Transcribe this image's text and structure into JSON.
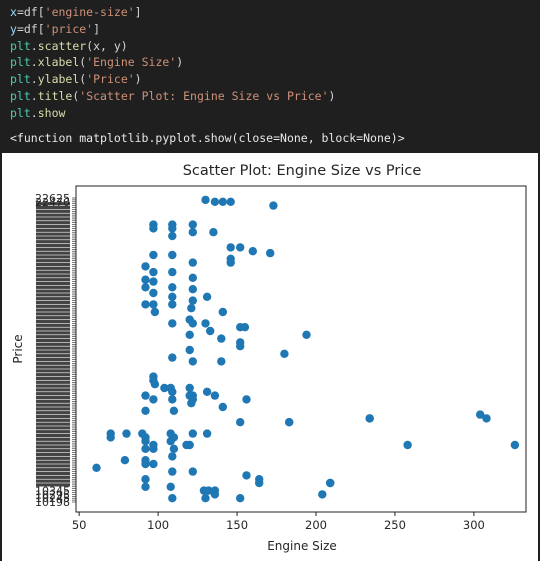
{
  "code_cell": {
    "lines": [
      [
        {
          "t": "x",
          "c": "var"
        },
        {
          "t": "=df[",
          "c": "plain"
        },
        {
          "t": "'engine-size'",
          "c": "str"
        },
        {
          "t": "]",
          "c": "plain"
        }
      ],
      [
        {
          "t": "y",
          "c": "var"
        },
        {
          "t": "=df[",
          "c": "plain"
        },
        {
          "t": "'price'",
          "c": "str"
        },
        {
          "t": "]",
          "c": "plain"
        }
      ],
      [
        {
          "t": "plt",
          "c": "mod"
        },
        {
          "t": ".",
          "c": "plain"
        },
        {
          "t": "scatter",
          "c": "fn"
        },
        {
          "t": "(x, y)",
          "c": "plain"
        }
      ],
      [
        {
          "t": "plt",
          "c": "mod"
        },
        {
          "t": ".",
          "c": "plain"
        },
        {
          "t": "xlabel",
          "c": "fn"
        },
        {
          "t": "(",
          "c": "plain"
        },
        {
          "t": "'Engine Size'",
          "c": "str"
        },
        {
          "t": ")",
          "c": "plain"
        }
      ],
      [
        {
          "t": "plt",
          "c": "mod"
        },
        {
          "t": ".",
          "c": "plain"
        },
        {
          "t": "ylabel",
          "c": "fn"
        },
        {
          "t": "(",
          "c": "plain"
        },
        {
          "t": "'Price'",
          "c": "str"
        },
        {
          "t": ")",
          "c": "plain"
        }
      ],
      [
        {
          "t": "plt",
          "c": "mod"
        },
        {
          "t": ".",
          "c": "plain"
        },
        {
          "t": "title",
          "c": "fn"
        },
        {
          "t": "(",
          "c": "plain"
        },
        {
          "t": "'Scatter Plot: Engine Size vs Price'",
          "c": "str"
        },
        {
          "t": ")",
          "c": "plain"
        }
      ],
      [
        {
          "t": "plt",
          "c": "mod"
        },
        {
          "t": ".",
          "c": "plain"
        },
        {
          "t": "show",
          "c": "fn"
        }
      ]
    ]
  },
  "output": {
    "text": "<function matplotlib.pyplot.show(close=None, block=None)>"
  },
  "colors": {
    "marker": "#1f77b4",
    "str": "#ce9178",
    "var": "#9cdcfe",
    "fn": "#dcdcaa",
    "mod": "#4ec9b0",
    "plain": "#d4d4d4"
  },
  "chart_data": {
    "type": "scatter",
    "title": "Scatter Plot: Engine Size vs Price",
    "xlabel": "Engine Size",
    "ylabel": "Price",
    "xlim": [
      48,
      333
    ],
    "x_ticks": [
      50,
      100,
      150,
      200,
      250,
      300
    ],
    "y_axis_note": "categorical price strings; tick labels overlap and are illegible",
    "y_top_visible_labels": [
      "22625",
      "22470"
    ],
    "y_bottom_visible_labels": [
      "10345",
      "10295",
      "10245",
      "10198"
    ],
    "grid": false,
    "legend": "none",
    "x": [
      130,
      136,
      141,
      146,
      173,
      97,
      109,
      122,
      97,
      109,
      122,
      109,
      135,
      146,
      152,
      160,
      171,
      97,
      109,
      146,
      122,
      146,
      92,
      97,
      109,
      122,
      92,
      97,
      92,
      109,
      122,
      97,
      109,
      131,
      122,
      92,
      97,
      109,
      121,
      141,
      98,
      120,
      109,
      130,
      122,
      152,
      155,
      133,
      120,
      194,
      140,
      152,
      152,
      120,
      180,
      109,
      140,
      122,
      97,
      97,
      98,
      104,
      108,
      109,
      120,
      131,
      122,
      136,
      92,
      97,
      109,
      120,
      122,
      156,
      121,
      141,
      92,
      110,
      234,
      234,
      304,
      308,
      152,
      183,
      183,
      70,
      70,
      80,
      90,
      92,
      108,
      110,
      122,
      131,
      97,
      120,
      92,
      108,
      118,
      258,
      326,
      92,
      97,
      110,
      109,
      79,
      92,
      92,
      97,
      61,
      109,
      122,
      156,
      92,
      164,
      164,
      209,
      209,
      92,
      108,
      129,
      132,
      136,
      136,
      204,
      109,
      130,
      152
    ],
    "y_index_from_top": [
      1,
      2,
      2,
      2,
      4,
      14,
      14,
      14,
      16,
      16,
      18,
      20,
      18,
      26,
      26,
      28,
      29,
      30,
      30,
      32,
      34,
      34,
      36,
      39,
      39,
      42,
      43,
      44,
      47,
      47,
      48,
      50,
      52,
      52,
      54,
      56,
      56,
      56,
      58,
      60,
      60,
      64,
      66,
      66,
      66,
      68,
      68,
      70,
      72,
      72,
      74,
      76,
      78,
      80,
      82,
      84,
      86,
      86,
      94,
      96,
      98,
      100,
      100,
      102,
      100,
      102,
      104,
      104,
      104,
      106,
      106,
      104,
      106,
      106,
      108,
      110,
      112,
      112,
      116,
      116,
      114,
      116,
      118,
      118,
      118,
      124,
      126,
      124,
      124,
      126,
      124,
      126,
      124,
      124,
      130,
      130,
      128,
      128,
      130,
      130,
      130,
      132,
      132,
      132,
      136,
      138,
      138,
      140,
      140,
      142,
      144,
      144,
      146,
      148,
      148,
      150,
      150,
      150,
      152,
      152,
      154,
      154,
      154,
      156,
      156,
      158,
      158,
      158
    ],
    "y_index_range": [
      0,
      160
    ]
  }
}
